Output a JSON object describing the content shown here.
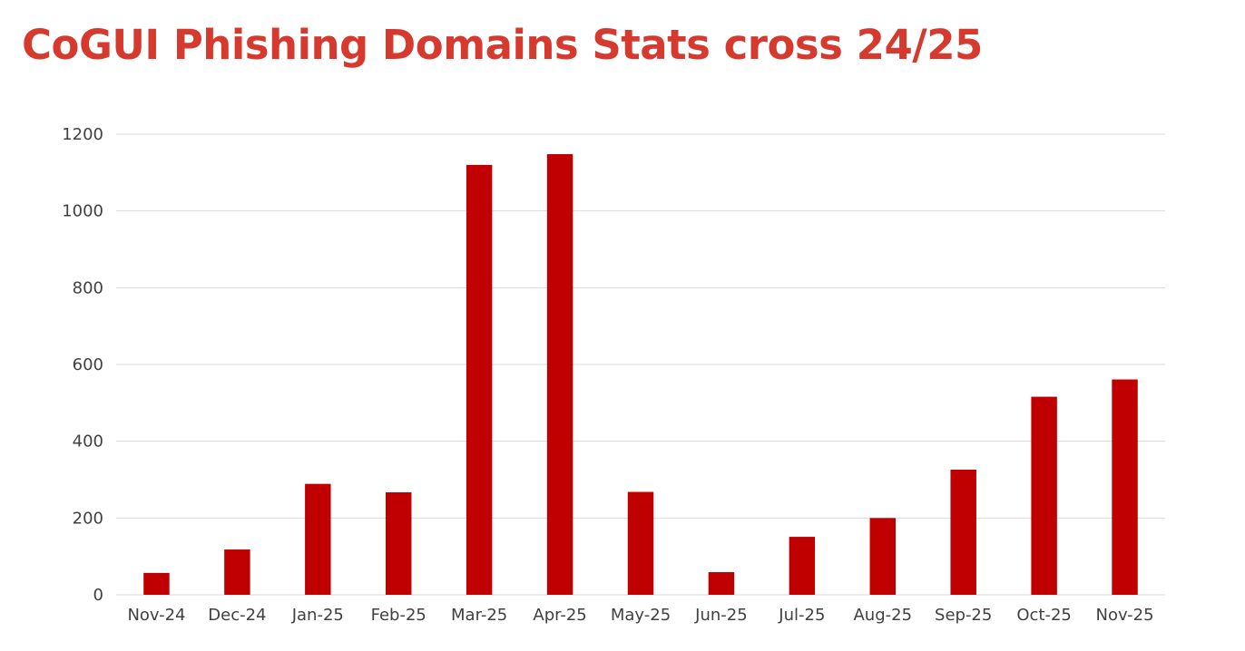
{
  "title": "CoGUI Phishing Domains Stats cross 24/25",
  "colors": {
    "title": "#d63a2f",
    "bar": "#c00000",
    "grid": "#d9d9d9",
    "axis_text": "#404040"
  },
  "chart_data": {
    "type": "bar",
    "title": "CoGUI Phishing Domains Stats cross 24/25",
    "xlabel": "",
    "ylabel": "",
    "ylim": [
      0,
      1200
    ],
    "yticks": [
      0,
      200,
      400,
      600,
      800,
      1000,
      1200
    ],
    "grid": true,
    "legend": "none",
    "categories": [
      "Nov-24",
      "Dec-24",
      "Jan-25",
      "Feb-25",
      "Mar-25",
      "Apr-25",
      "May-25",
      "Jun-25",
      "Jul-25",
      "Aug-25",
      "Sep-25",
      "Oct-25",
      "Nov-25"
    ],
    "values": [
      57,
      118,
      289,
      267,
      1120,
      1148,
      268,
      59,
      151,
      200,
      326,
      516,
      561
    ]
  }
}
